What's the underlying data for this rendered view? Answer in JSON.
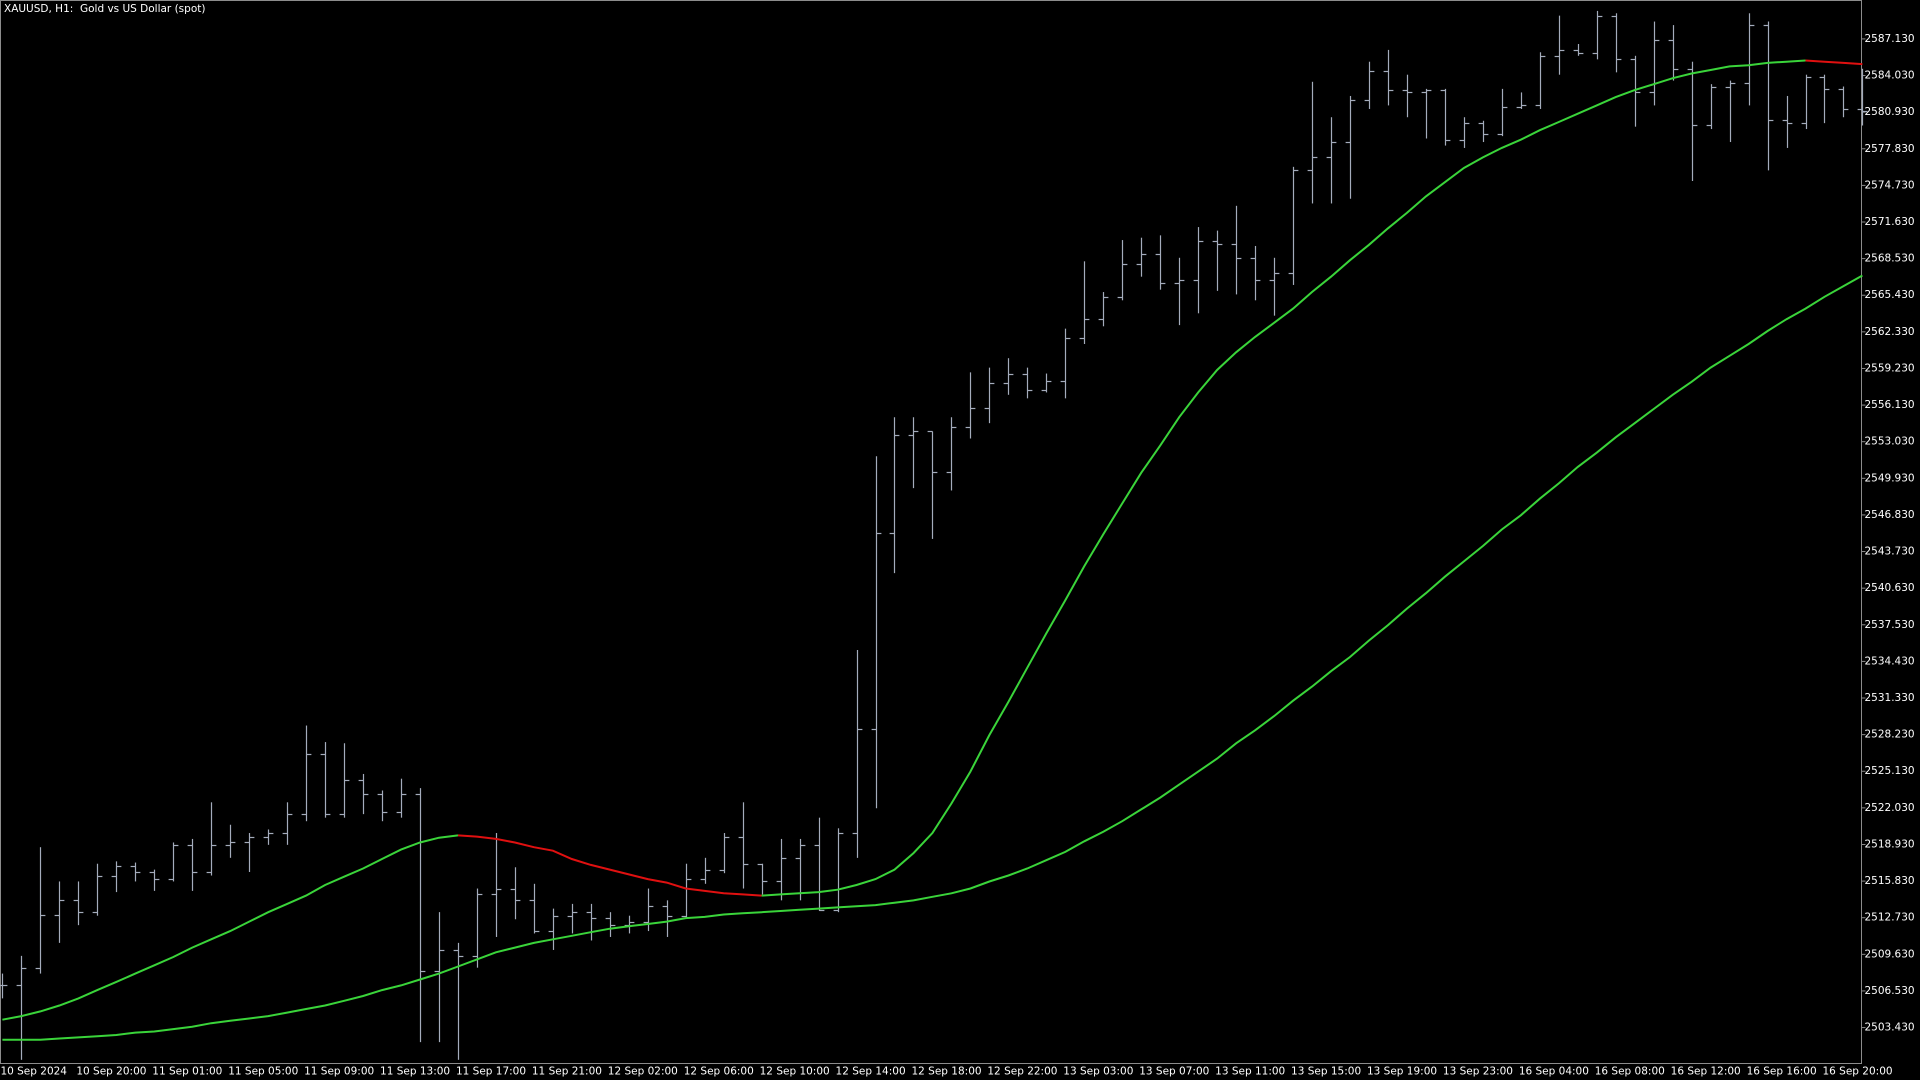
{
  "chart_data": {
    "type": "ohlc",
    "title": "XAUUSD, H1:  Gold vs US Dollar (spot)",
    "categories": [
      "10 Sep 2024",
      null,
      null,
      null,
      "10 Sep 20:00",
      null,
      null,
      null,
      "11 Sep 01:00",
      null,
      null,
      null,
      "11 Sep 05:00",
      null,
      null,
      null,
      "11 Sep 09:00",
      null,
      null,
      null,
      "11 Sep 13:00",
      null,
      null,
      null,
      "11 Sep 17:00",
      null,
      null,
      null,
      "11 Sep 21:00",
      null,
      null,
      null,
      "12 Sep 02:00",
      null,
      null,
      null,
      "12 Sep 06:00",
      null,
      null,
      null,
      "12 Sep 10:00",
      null,
      null,
      null,
      "12 Sep 14:00",
      null,
      null,
      null,
      "12 Sep 18:00",
      null,
      null,
      null,
      "12 Sep 22:00",
      null,
      null,
      null,
      "13 Sep 03:00",
      null,
      null,
      null,
      "13 Sep 07:00",
      null,
      null,
      null,
      "13 Sep 11:00",
      null,
      null,
      null,
      "13 Sep 15:00",
      null,
      null,
      null,
      "13 Sep 19:00",
      null,
      null,
      null,
      "13 Sep 23:00",
      null,
      null,
      null,
      "16 Sep 04:00",
      null,
      null,
      null,
      "16 Sep 08:00",
      null,
      null,
      null,
      "16 Sep 12:00",
      null,
      null,
      null,
      "16 Sep 16:00",
      null,
      null,
      null,
      "16 Sep 20:00",
      null,
      null
    ],
    "open": [
      2507.0,
      2507.0,
      2508.5,
      2513.0,
      2514.2,
      2513.2,
      2516.3,
      2517.1,
      2516.6,
      2516.0,
      2518.9,
      2516.6,
      2518.9,
      2519.1,
      2519.6,
      2519.9,
      2521.5,
      2526.6,
      2521.5,
      2524.4,
      2523.2,
      2521.7,
      2523.2,
      2508.2,
      2510.0,
      2509.5,
      2514.7,
      2515.2,
      2514.2,
      2511.6,
      2512.9,
      2513.2,
      2512.7,
      2512.1,
      2512.4,
      2513.7,
      2512.9,
      2516.0,
      2516.8,
      2519.6,
      2517.3,
      2515.8,
      2517.8,
      2518.9,
      2513.4,
      2519.9,
      2528.7,
      2545.3,
      2553.6,
      2553.9,
      2550.5,
      2554.3,
      2555.9,
      2558.0,
      2558.8,
      2557.4,
      2558.2,
      2561.8,
      2563.4,
      2565.3,
      2568.1,
      2568.9,
      2566.5,
      2566.7,
      2570.0,
      2569.8,
      2568.6,
      2566.7,
      2567.3,
      2576.0,
      2577.1,
      2578.4,
      2582.0,
      2584.4,
      2582.8,
      2582.6,
      2582.8,
      2578.6,
      2580.0,
      2579.1,
      2581.4,
      2581.5,
      2585.7,
      2586.2,
      2585.9,
      2589.1,
      2585.4,
      2582.6,
      2587.0,
      2584.6,
      2579.8,
      2583.1,
      2583.4,
      2588.3,
      2580.3,
      2580.0,
      2583.9,
      2582.9,
      2581.2
    ],
    "high": [
      2508.0,
      2509.5,
      2518.7,
      2515.8,
      2515.8,
      2517.3,
      2517.5,
      2517.4,
      2516.8,
      2519.1,
      2519.4,
      2522.5,
      2520.6,
      2519.9,
      2520.2,
      2522.5,
      2529.0,
      2527.6,
      2527.5,
      2524.9,
      2523.5,
      2524.5,
      2523.7,
      2513.2,
      2510.6,
      2515.2,
      2519.9,
      2517.0,
      2515.6,
      2513.5,
      2513.9,
      2513.9,
      2513.2,
      2512.9,
      2515.2,
      2514.2,
      2517.3,
      2517.8,
      2519.9,
      2522.5,
      2517.3,
      2519.4,
      2519.4,
      2521.2,
      2520.3,
      2535.4,
      2551.8,
      2555.1,
      2555.1,
      2553.9,
      2555.1,
      2558.9,
      2559.3,
      2560.1,
      2559.3,
      2558.8,
      2562.6,
      2568.3,
      2565.7,
      2570.1,
      2570.3,
      2570.5,
      2568.6,
      2571.2,
      2570.9,
      2573.0,
      2569.6,
      2568.6,
      2576.3,
      2583.5,
      2580.5,
      2582.3,
      2585.2,
      2586.2,
      2584.1,
      2582.9,
      2582.9,
      2580.5,
      2580.2,
      2582.9,
      2582.6,
      2586.0,
      2589.1,
      2586.7,
      2589.5,
      2589.3,
      2585.7,
      2588.6,
      2588.3,
      2585.2,
      2583.3,
      2583.6,
      2589.3,
      2588.6,
      2582.3,
      2584.1,
      2584.1,
      2583.1,
      2584.6
    ],
    "low": [
      2505.9,
      2500.7,
      2508.0,
      2510.6,
      2512.1,
      2512.9,
      2514.9,
      2515.8,
      2515.0,
      2515.8,
      2515.0,
      2516.3,
      2517.8,
      2516.6,
      2518.9,
      2518.9,
      2520.9,
      2521.2,
      2521.2,
      2521.5,
      2520.9,
      2521.2,
      2502.2,
      2502.2,
      2500.7,
      2508.5,
      2511.1,
      2512.6,
      2511.4,
      2510.0,
      2511.4,
      2510.8,
      2511.1,
      2511.4,
      2511.6,
      2511.1,
      2512.7,
      2515.6,
      2516.5,
      2515.2,
      2514.7,
      2514.2,
      2514.2,
      2513.3,
      2513.2,
      2517.8,
      2522.0,
      2541.9,
      2549.1,
      2544.8,
      2548.9,
      2553.3,
      2554.6,
      2557.0,
      2556.7,
      2557.2,
      2556.7,
      2561.3,
      2562.8,
      2565.0,
      2567.0,
      2565.9,
      2562.9,
      2563.9,
      2565.8,
      2565.5,
      2565.0,
      2563.7,
      2566.3,
      2573.2,
      2573.2,
      2573.6,
      2581.2,
      2581.5,
      2580.5,
      2578.7,
      2578.1,
      2577.9,
      2578.4,
      2578.9,
      2581.2,
      2581.2,
      2584.1,
      2585.7,
      2585.4,
      2584.3,
      2579.7,
      2581.5,
      2583.6,
      2575.1,
      2579.5,
      2578.4,
      2581.5,
      2576.0,
      2577.9,
      2579.5,
      2580.0,
      2580.5,
      2579.8
    ],
    "close": [
      2507.0,
      2508.5,
      2513.0,
      2514.2,
      2513.2,
      2516.3,
      2517.1,
      2516.6,
      2516.0,
      2518.9,
      2516.6,
      2518.9,
      2519.1,
      2519.6,
      2519.9,
      2521.5,
      2526.6,
      2521.5,
      2524.4,
      2523.2,
      2521.7,
      2523.2,
      2508.2,
      2510.0,
      2509.5,
      2514.7,
      2515.2,
      2514.2,
      2511.6,
      2512.9,
      2513.2,
      2512.7,
      2512.1,
      2512.4,
      2513.7,
      2512.9,
      2516.0,
      2516.8,
      2519.6,
      2517.3,
      2515.8,
      2517.8,
      2518.9,
      2513.4,
      2519.9,
      2528.7,
      2545.3,
      2553.6,
      2553.9,
      2550.5,
      2554.3,
      2555.9,
      2558.0,
      2558.8,
      2557.4,
      2558.2,
      2561.8,
      2563.4,
      2565.3,
      2568.1,
      2568.9,
      2566.5,
      2566.7,
      2570.0,
      2569.8,
      2568.6,
      2566.7,
      2567.3,
      2576.0,
      2577.1,
      2578.4,
      2582.0,
      2584.4,
      2582.8,
      2582.6,
      2582.8,
      2578.6,
      2580.0,
      2579.1,
      2581.4,
      2581.5,
      2585.7,
      2586.2,
      2585.9,
      2589.1,
      2585.4,
      2582.6,
      2587.0,
      2584.6,
      2579.8,
      2583.1,
      2583.4,
      2588.3,
      2580.3,
      2580.0,
      2583.9,
      2582.9,
      2581.2,
      2581.0
    ],
    "color": "#a4acbc",
    "lines": [
      {
        "color": "#3ad43a",
        "down_color": "#e01010",
        "values": [
          2504.1,
          2504.4,
          2504.8,
          2505.3,
          2505.9,
          2506.6,
          2507.3,
          2508.0,
          2508.7,
          2509.4,
          2510.2,
          2510.9,
          2511.6,
          2512.4,
          2513.2,
          2513.9,
          2514.6,
          2515.5,
          2516.2,
          2516.9,
          2517.7,
          2518.5,
          2519.1,
          2519.5,
          2519.7,
          2519.6,
          2519.4,
          2519.1,
          2518.7,
          2518.4,
          2517.7,
          2517.2,
          2516.8,
          2516.4,
          2516.0,
          2515.7,
          2515.2,
          2515.0,
          2514.8,
          2514.7,
          2514.6,
          2514.7,
          2514.8,
          2514.9,
          2515.1,
          2515.5,
          2516.0,
          2516.8,
          2518.2,
          2519.9,
          2522.4,
          2525.1,
          2528.2,
          2531.0,
          2533.9,
          2536.8,
          2539.6,
          2542.5,
          2545.2,
          2547.8,
          2550.4,
          2552.7,
          2555.1,
          2557.2,
          2559.1,
          2560.6,
          2561.9,
          2563.1,
          2564.3,
          2565.7,
          2567.0,
          2568.4,
          2569.7,
          2571.1,
          2572.4,
          2573.8,
          2575.0,
          2576.2,
          2577.1,
          2577.9,
          2578.6,
          2579.4,
          2580.1,
          2580.8,
          2581.5,
          2582.2,
          2582.8,
          2583.3,
          2583.8,
          2584.2,
          2584.5,
          2584.8,
          2584.9,
          2585.1,
          2585.2,
          2585.3,
          2585.2,
          2585.1,
          2585.0
        ]
      },
      {
        "color": "#3ad43a",
        "values": [
          2502.4,
          2502.4,
          2502.4,
          2502.5,
          2502.6,
          2502.7,
          2502.8,
          2503.0,
          2503.1,
          2503.3,
          2503.5,
          2503.8,
          2504.0,
          2504.2,
          2504.4,
          2504.7,
          2505.0,
          2505.3,
          2505.7,
          2506.1,
          2506.6,
          2507.0,
          2507.5,
          2508.0,
          2508.6,
          2509.2,
          2509.8,
          2510.2,
          2510.6,
          2510.9,
          2511.2,
          2511.5,
          2511.8,
          2512.0,
          2512.2,
          2512.4,
          2512.7,
          2512.8,
          2513.0,
          2513.1,
          2513.2,
          2513.3,
          2513.4,
          2513.5,
          2513.6,
          2513.7,
          2513.8,
          2514.0,
          2514.2,
          2514.5,
          2514.8,
          2515.2,
          2515.8,
          2516.3,
          2516.9,
          2517.6,
          2518.3,
          2519.2,
          2520.0,
          2520.9,
          2521.9,
          2522.9,
          2524.0,
          2525.1,
          2526.2,
          2527.5,
          2528.6,
          2529.8,
          2531.1,
          2532.3,
          2533.6,
          2534.8,
          2536.2,
          2537.5,
          2538.9,
          2540.2,
          2541.6,
          2542.9,
          2544.2,
          2545.6,
          2546.8,
          2548.2,
          2549.5,
          2550.9,
          2552.1,
          2553.4,
          2554.6,
          2555.8,
          2557.0,
          2558.1,
          2559.3,
          2560.3,
          2561.3,
          2562.4,
          2563.4,
          2564.3,
          2565.3,
          2566.2,
          2567.1
        ]
      }
    ],
    "ylim": [
      2500.43,
      2590.34
    ],
    "yticks": [
      {
        "value": 2503.43,
        "label": "2503.430"
      },
      {
        "value": 2506.53,
        "label": "2506.530"
      },
      {
        "value": 2509.63,
        "label": "2509.630"
      },
      {
        "value": 2512.73,
        "label": "2512.730"
      },
      {
        "value": 2515.83,
        "label": "2515.830"
      },
      {
        "value": 2518.93,
        "label": "2518.930"
      },
      {
        "value": 2522.03,
        "label": "2522.030"
      },
      {
        "value": 2525.13,
        "label": "2525.130"
      },
      {
        "value": 2528.23,
        "label": "2528.230"
      },
      {
        "value": 2531.33,
        "label": "2531.330"
      },
      {
        "value": 2534.43,
        "label": "2534.430"
      },
      {
        "value": 2537.53,
        "label": "2537.530"
      },
      {
        "value": 2540.63,
        "label": "2540.630"
      },
      {
        "value": 2543.73,
        "label": "2543.730"
      },
      {
        "value": 2546.83,
        "label": "2546.830"
      },
      {
        "value": 2549.93,
        "label": "2549.930"
      },
      {
        "value": 2553.03,
        "label": "2553.030"
      },
      {
        "value": 2556.13,
        "label": "2556.130"
      },
      {
        "value": 2559.23,
        "label": "2559.230"
      },
      {
        "value": 2562.33,
        "label": "2562.330"
      },
      {
        "value": 2565.43,
        "label": "2565.430"
      },
      {
        "value": 2568.53,
        "label": "2568.530"
      },
      {
        "value": 2571.63,
        "label": "2571.630"
      },
      {
        "value": 2574.73,
        "label": "2574.730"
      },
      {
        "value": 2577.83,
        "label": "2577.830"
      },
      {
        "value": 2580.93,
        "label": "2580.930"
      },
      {
        "value": 2584.03,
        "label": "2584.030"
      },
      {
        "value": 2587.13,
        "label": "2587.130"
      }
    ],
    "grid": false
  }
}
